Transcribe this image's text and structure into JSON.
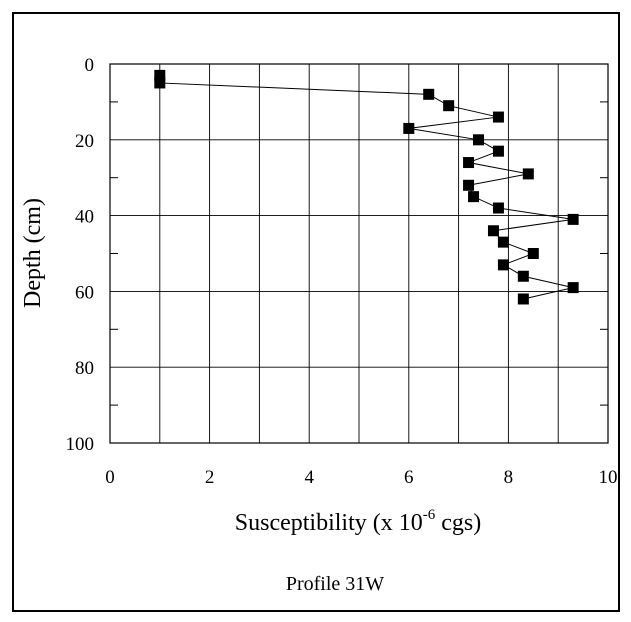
{
  "chart_data": {
    "type": "scatter",
    "title": "",
    "caption": "Profile 31W",
    "xlabel": {
      "main": "Susceptibility  (x 10",
      "superscript": "-6",
      "unit": " cgs)"
    },
    "ylabel": "Depth  (cm)",
    "xlim": [
      0,
      10
    ],
    "ylim": [
      0,
      100
    ],
    "y_inverted": true,
    "grid": true,
    "x_ticks": [
      0,
      2,
      4,
      6,
      8,
      10
    ],
    "y_ticks": [
      0,
      20,
      40,
      60,
      80,
      100
    ],
    "series": [
      {
        "marker": "square",
        "connected": true,
        "color": "#000000",
        "points": [
          {
            "x": 1.0,
            "y": 3
          },
          {
            "x": 1.0,
            "y": 5
          },
          {
            "x": 6.4,
            "y": 8
          },
          {
            "x": 6.8,
            "y": 11
          },
          {
            "x": 7.8,
            "y": 14
          },
          {
            "x": 6.0,
            "y": 17
          },
          {
            "x": 7.4,
            "y": 20
          },
          {
            "x": 7.8,
            "y": 23
          },
          {
            "x": 7.2,
            "y": 26
          },
          {
            "x": 8.4,
            "y": 29
          },
          {
            "x": 7.2,
            "y": 32
          },
          {
            "x": 7.3,
            "y": 35
          },
          {
            "x": 7.8,
            "y": 38
          },
          {
            "x": 9.3,
            "y": 41
          },
          {
            "x": 7.7,
            "y": 44
          },
          {
            "x": 7.9,
            "y": 47
          },
          {
            "x": 8.5,
            "y": 50
          },
          {
            "x": 7.9,
            "y": 53
          },
          {
            "x": 8.3,
            "y": 56
          },
          {
            "x": 9.3,
            "y": 59
          },
          {
            "x": 8.3,
            "y": 62
          }
        ]
      }
    ]
  }
}
